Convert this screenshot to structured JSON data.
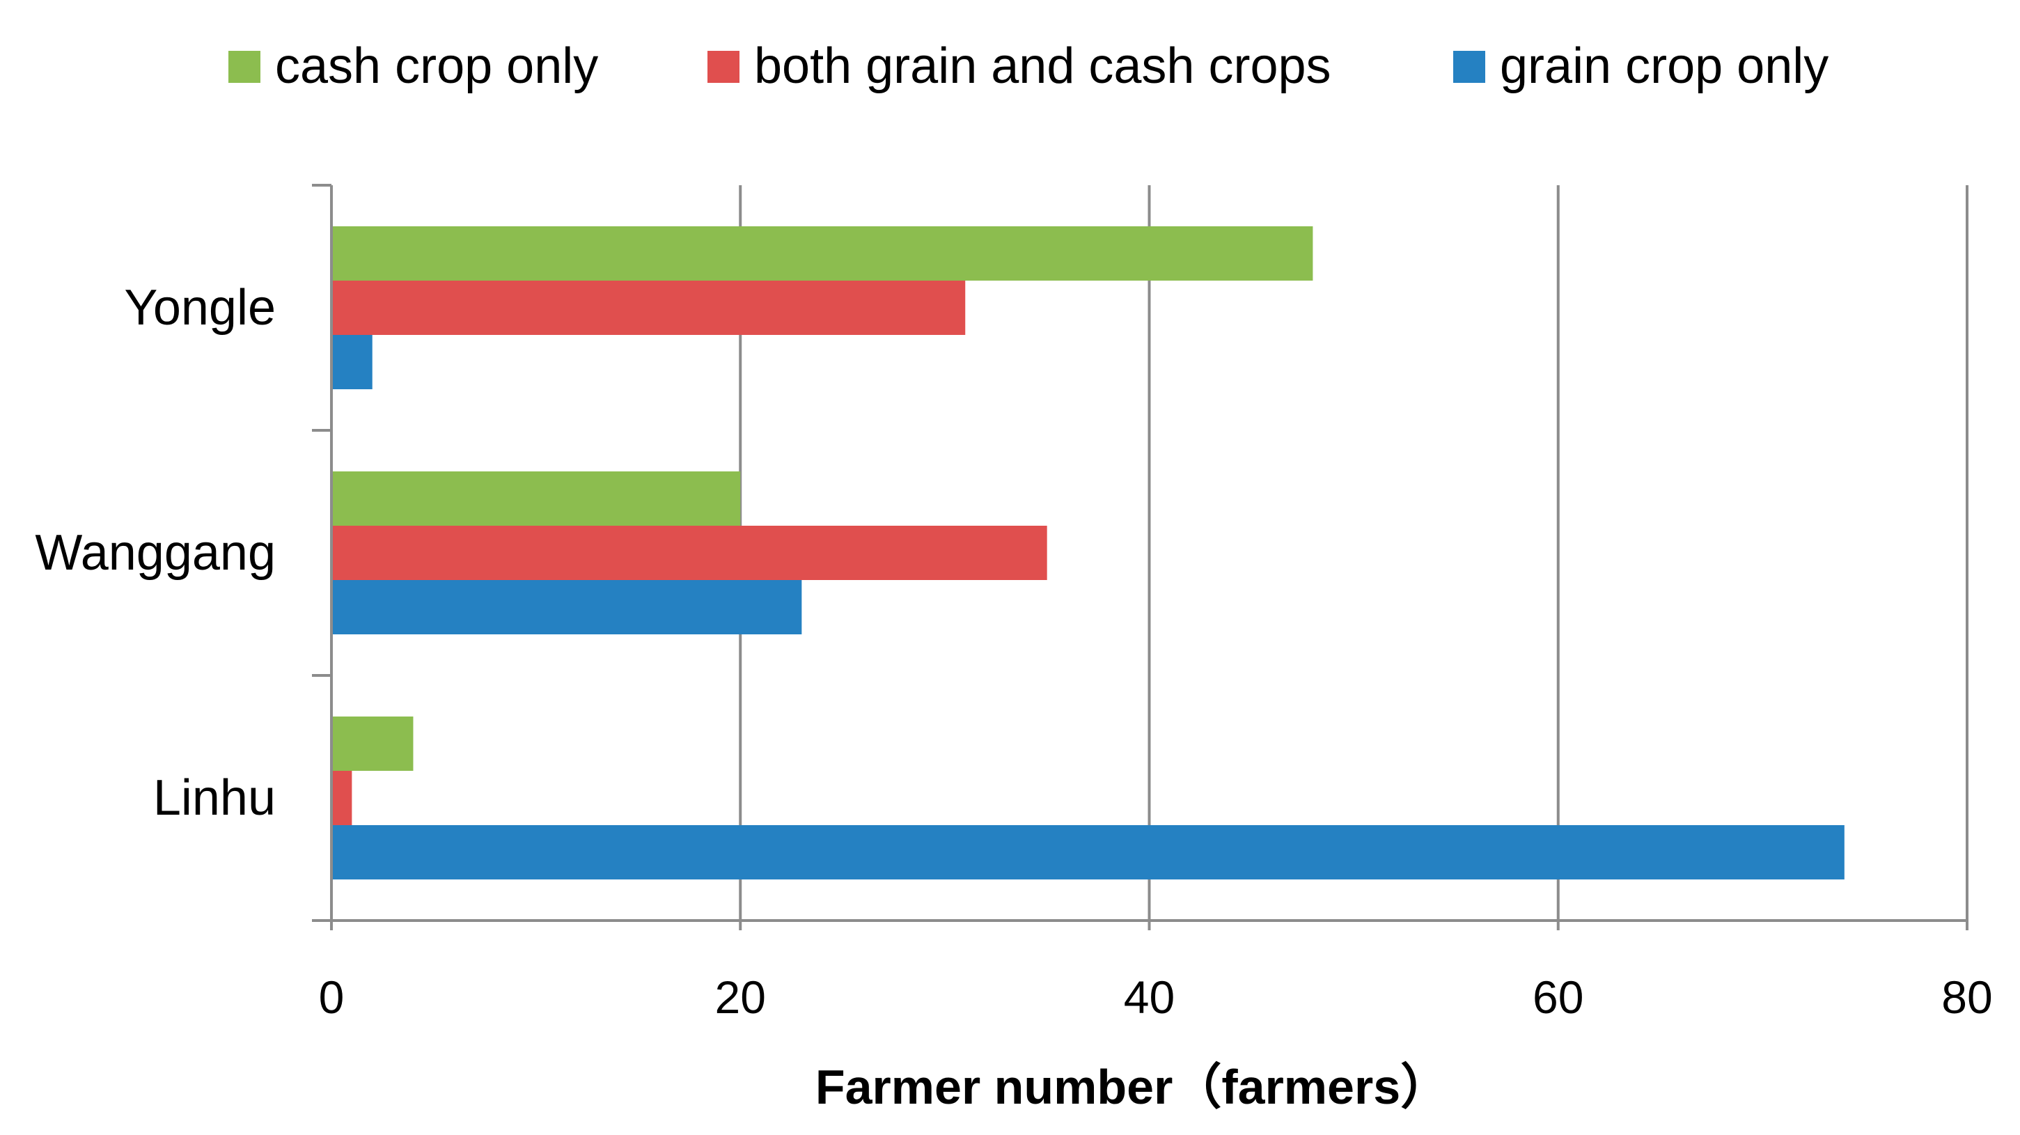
{
  "chart_data": {
    "type": "bar",
    "orientation": "horizontal",
    "title": "",
    "xlabel": "Farmer number（farmers）",
    "ylabel": "",
    "categories": [
      "Yongle",
      "Wanggang",
      "Linhu"
    ],
    "series": [
      {
        "name": "cash crop only",
        "color": "#8CBD4F",
        "values": [
          48,
          20,
          4
        ]
      },
      {
        "name": "both grain and cash crops",
        "color": "#E04F4E",
        "values": [
          31,
          35,
          1
        ]
      },
      {
        "name": "grain crop only",
        "color": "#2581C2",
        "values": [
          2,
          23,
          74
        ]
      }
    ],
    "xlim": [
      0,
      80
    ],
    "xticks": [
      "0",
      "20",
      "40",
      "60",
      "80"
    ],
    "grid": "vertical",
    "legend_position": "top"
  }
}
